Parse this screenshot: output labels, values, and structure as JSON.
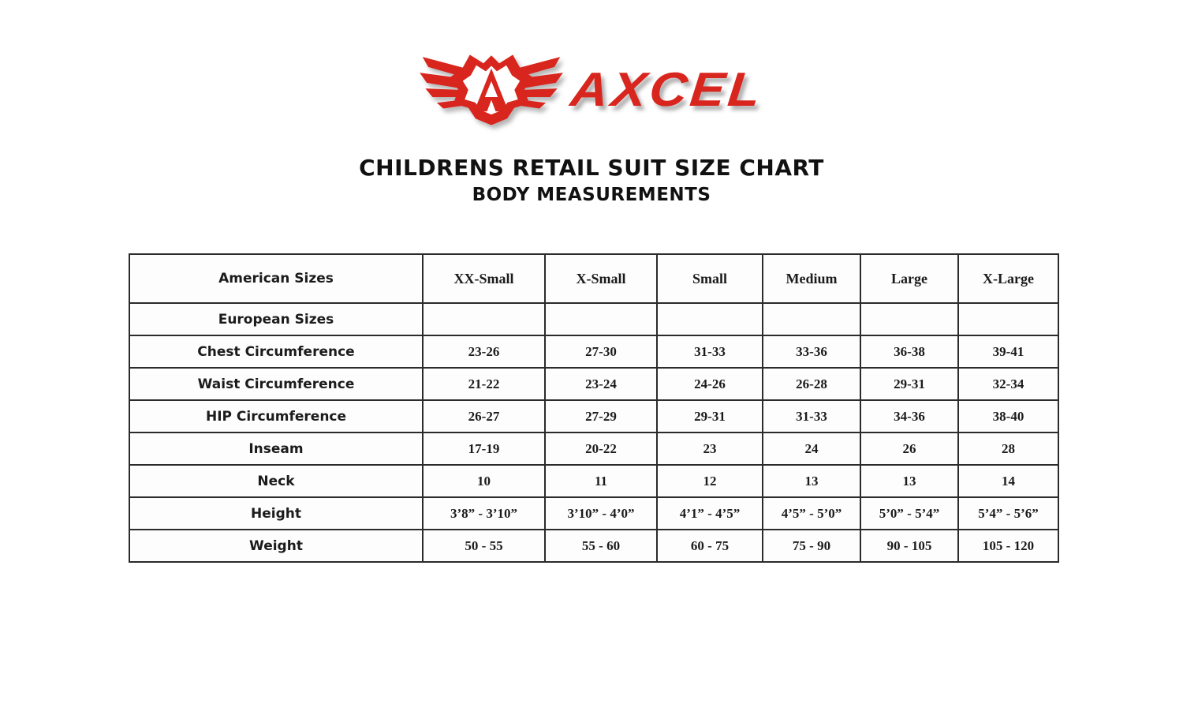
{
  "logo": {
    "brand": "AXCEL",
    "brand_color": "#d8251d"
  },
  "title": "CHILDRENS RETAIL SUIT SIZE CHART",
  "subtitle": "BODY MEASUREMENTS",
  "table": {
    "columns": [
      "American Sizes",
      "XX-Small",
      "X-Small",
      "Small",
      "Medium",
      "Large",
      "X-Large"
    ],
    "rows": [
      {
        "label": "European Sizes",
        "values": [
          "",
          "",
          "",
          "",
          "",
          ""
        ]
      },
      {
        "label": "Chest Circumference",
        "values": [
          "23-26",
          "27-30",
          "31-33",
          "33-36",
          "36-38",
          "39-41"
        ]
      },
      {
        "label": "Waist Circumference",
        "values": [
          "21-22",
          "23-24",
          "24-26",
          "26-28",
          "29-31",
          "32-34"
        ]
      },
      {
        "label": "HIP Circumference",
        "values": [
          "26-27",
          "27-29",
          "29-31",
          "31-33",
          "34-36",
          "38-40"
        ]
      },
      {
        "label": "Inseam",
        "values": [
          "17-19",
          "20-22",
          "23",
          "24",
          "26",
          "28"
        ]
      },
      {
        "label": "Neck",
        "values": [
          "10",
          "11",
          "12",
          "13",
          "13",
          "14"
        ]
      },
      {
        "label": "Height",
        "values": [
          "3’8” - 3’10”",
          "3’10” - 4’0”",
          "4’1” - 4’5”",
          "4’5” - 5’0”",
          "5’0” - 5’4”",
          "5’4” - 5’6”"
        ]
      },
      {
        "label": "Weight",
        "values": [
          "50 - 55",
          "55 - 60",
          "60 - 75",
          "75 - 90",
          "90 - 105",
          "105 - 120"
        ]
      }
    ]
  }
}
